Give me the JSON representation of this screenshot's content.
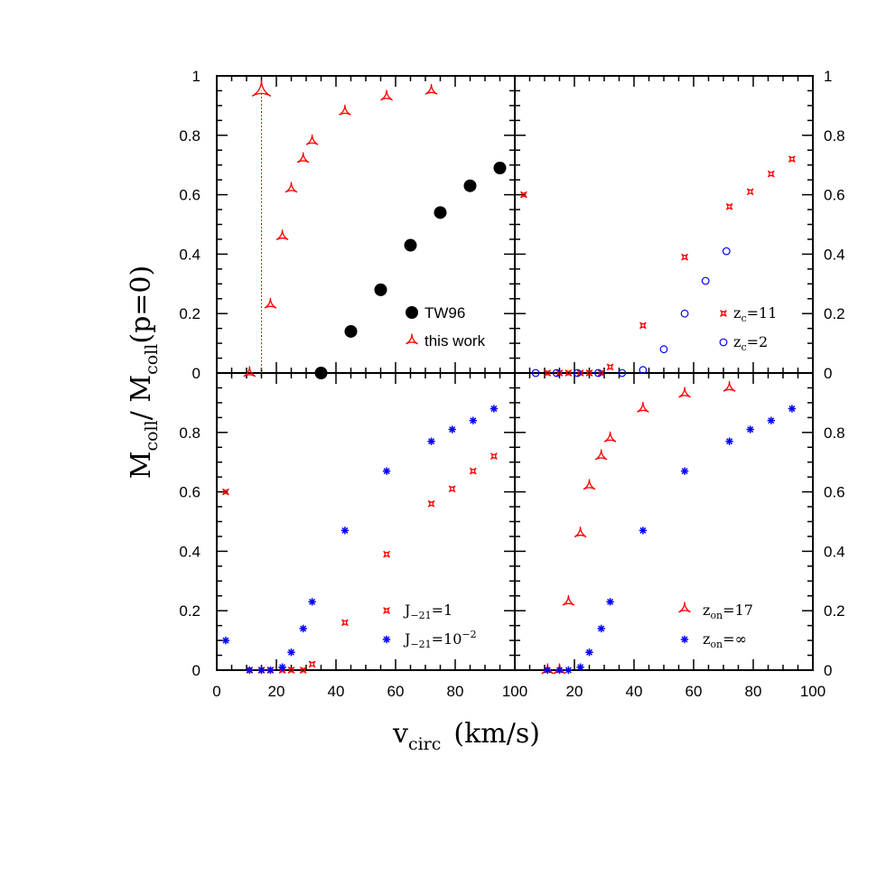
{
  "colors": {
    "red": "#ff0000",
    "blue": "#0000ff",
    "black": "#000000"
  },
  "axes": {
    "xlabel": {
      "main": "v",
      "sub": "circ",
      "units": "(km/s)"
    },
    "ylabel": {
      "m1": "M",
      "s1": "coll",
      "mid": "/ M",
      "s2": "coll",
      "tail": "(p=0)"
    },
    "x_ticks": [
      "0",
      "20",
      "40",
      "60",
      "80",
      "100"
    ],
    "y_ticks": [
      "0",
      "0.2",
      "0.4",
      "0.6",
      "0.8",
      "1"
    ],
    "y_ticks_bottom": [
      "0",
      "0.2",
      "0.4",
      "0.6",
      "0.8"
    ]
  },
  "legends": {
    "tl": [
      {
        "label": "TW96"
      },
      {
        "label": "this work"
      }
    ],
    "tr": [
      {
        "base": "z",
        "sub": "c",
        "rest": "=11"
      },
      {
        "base": "z",
        "sub": "c",
        "rest": "=2"
      }
    ],
    "bl": [
      {
        "base": "J",
        "sub": "−21",
        "rest": "=1"
      },
      {
        "base": "J",
        "sub": "−21",
        "rest": "=10",
        "sup": "−2"
      }
    ],
    "br": [
      {
        "base": "z",
        "sub": "on",
        "rest": "=17"
      },
      {
        "base": "z",
        "sub": "on",
        "rest": "=∞"
      }
    ]
  },
  "chart_data": [
    {
      "type": "scatter",
      "panel": "top-left",
      "xlim": [
        0,
        100
      ],
      "ylim": [
        0,
        1
      ],
      "series": [
        {
          "name": "TW96",
          "marker": "filled-circle",
          "color": "#000000",
          "x": [
            35,
            45,
            55,
            65,
            75,
            85,
            95
          ],
          "y": [
            0.0,
            0.14,
            0.28,
            0.43,
            0.54,
            0.63,
            0.69
          ]
        },
        {
          "name": "this work",
          "marker": "tri-star",
          "color": "#ff0000",
          "x": [
            11,
            15,
            18,
            22,
            25,
            29,
            32,
            43,
            57,
            72
          ],
          "y": [
            0.0,
            0.95,
            0.23,
            0.46,
            0.62,
            0.72,
            0.78,
            0.88,
            0.93,
            0.95
          ]
        }
      ],
      "annotation": {
        "type": "vertical-dotted-line",
        "x": 15,
        "y_range": [
          0,
          0.95
        ],
        "color": "#ff0000"
      }
    },
    {
      "type": "scatter",
      "panel": "top-right",
      "xlim": [
        0,
        100
      ],
      "ylim": [
        0,
        1
      ],
      "series": [
        {
          "name": "z_c=11",
          "marker": "small-star",
          "color": "#ff0000",
          "x": [
            3,
            11,
            15,
            18,
            22,
            25,
            29,
            32,
            43,
            57,
            72,
            79,
            86,
            93
          ],
          "y": [
            0.6,
            0.0,
            0.0,
            0.0,
            0.0,
            0.0,
            0.0,
            0.02,
            0.16,
            0.39,
            0.56,
            0.61,
            0.67,
            0.72
          ]
        },
        {
          "name": "z_c=2",
          "marker": "open-circle",
          "color": "#0000ff",
          "x": [
            7,
            14,
            21,
            28,
            36,
            43,
            50,
            57,
            64,
            71
          ],
          "y": [
            0.0,
            0.0,
            0.0,
            0.0,
            0.0,
            0.01,
            0.08,
            0.2,
            0.31,
            0.41
          ]
        }
      ]
    },
    {
      "type": "scatter",
      "panel": "bottom-left",
      "xlim": [
        0,
        100
      ],
      "ylim": [
        0,
        1
      ],
      "series": [
        {
          "name": "J_-21=1",
          "marker": "small-star",
          "color": "#ff0000",
          "x": [
            3,
            11,
            15,
            18,
            22,
            25,
            29,
            32,
            43,
            57,
            72,
            79,
            86,
            93
          ],
          "y": [
            0.6,
            0.0,
            0.0,
            0.0,
            0.0,
            0.0,
            0.0,
            0.02,
            0.16,
            0.39,
            0.56,
            0.61,
            0.67,
            0.72
          ]
        },
        {
          "name": "J_-21=10^-2",
          "marker": "asterisk",
          "color": "#0000ff",
          "x": [
            3,
            11,
            15,
            18,
            22,
            25,
            29,
            32,
            43,
            57,
            72,
            79,
            86,
            93
          ],
          "y": [
            0.1,
            0.0,
            0.0,
            0.0,
            0.01,
            0.06,
            0.14,
            0.23,
            0.47,
            0.67,
            0.77,
            0.81,
            0.84,
            0.88
          ]
        }
      ]
    },
    {
      "type": "scatter",
      "panel": "bottom-right",
      "xlim": [
        0,
        100
      ],
      "ylim": [
        0,
        1
      ],
      "series": [
        {
          "name": "z_on=17",
          "marker": "tri-star",
          "color": "#ff0000",
          "x": [
            11,
            15,
            18,
            22,
            25,
            29,
            32,
            43,
            57,
            72
          ],
          "y": [
            0.0,
            0.0,
            0.23,
            0.46,
            0.62,
            0.72,
            0.78,
            0.88,
            0.93,
            0.95
          ]
        },
        {
          "name": "z_on=∞",
          "marker": "asterisk",
          "color": "#0000ff",
          "x": [
            11,
            15,
            18,
            22,
            25,
            29,
            32,
            43,
            57,
            72,
            79,
            86,
            93
          ],
          "y": [
            0.0,
            0.0,
            0.0,
            0.01,
            0.06,
            0.14,
            0.23,
            0.47,
            0.67,
            0.77,
            0.81,
            0.84,
            0.88
          ]
        }
      ]
    }
  ]
}
